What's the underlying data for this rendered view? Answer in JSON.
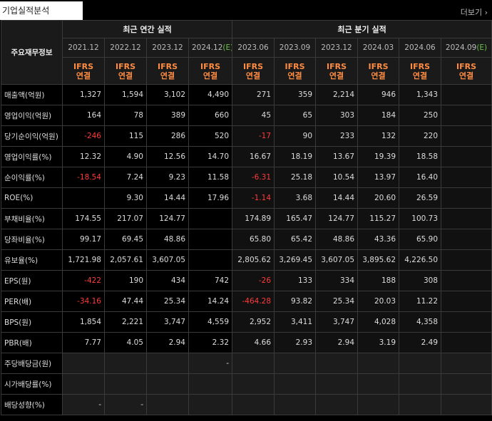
{
  "section_title": "기업실적분석",
  "more_label": "더보기",
  "more_arrow": "›",
  "corner_label": "주요재무정보",
  "groups": {
    "annual": "최근 연간 실적",
    "quarterly": "최근 분기 실적"
  },
  "estimate_suffix": "(E)",
  "annual_periods": [
    "2021.12",
    "2022.12",
    "2023.12",
    "2024.12"
  ],
  "quarter_periods": [
    "2023.06",
    "2023.09",
    "2023.12",
    "2024.03",
    "2024.06",
    "2024.09"
  ],
  "ifrs_label": "IFRS",
  "consol_label": "연결",
  "rows": [
    {
      "label": "매출액(억원)",
      "values": [
        "1,327",
        "1,594",
        "3,102",
        "4,490",
        "271",
        "359",
        "2,214",
        "946",
        "1,343",
        ""
      ]
    },
    {
      "label": "영업이익(억원)",
      "values": [
        "164",
        "78",
        "389",
        "660",
        "45",
        "65",
        "303",
        "184",
        "250",
        ""
      ]
    },
    {
      "label": "당기순이익(억원)",
      "values": [
        "-246",
        "115",
        "286",
        "520",
        "-17",
        "90",
        "233",
        "132",
        "220",
        ""
      ]
    },
    {
      "label": "영업이익률(%)",
      "values": [
        "12.32",
        "4.90",
        "12.56",
        "14.70",
        "16.67",
        "18.19",
        "13.67",
        "19.39",
        "18.58",
        ""
      ]
    },
    {
      "label": "순이익률(%)",
      "values": [
        "-18.54",
        "7.24",
        "9.23",
        "11.58",
        "-6.31",
        "25.18",
        "10.54",
        "13.97",
        "16.40",
        ""
      ]
    },
    {
      "label": "ROE(%)",
      "values": [
        "",
        "9.30",
        "14.44",
        "17.96",
        "-1.14",
        "3.68",
        "14.44",
        "20.60",
        "26.59",
        ""
      ]
    },
    {
      "label": "부채비율(%)",
      "values": [
        "174.55",
        "217.07",
        "124.77",
        "",
        "174.89",
        "165.47",
        "124.77",
        "115.27",
        "100.73",
        ""
      ]
    },
    {
      "label": "당좌비율(%)",
      "values": [
        "99.17",
        "69.45",
        "48.86",
        "",
        "65.80",
        "65.42",
        "48.86",
        "43.36",
        "65.90",
        ""
      ]
    },
    {
      "label": "유보율(%)",
      "values": [
        "1,721.98",
        "2,057.61",
        "3,607.05",
        "",
        "2,805.62",
        "3,269.45",
        "3,607.05",
        "3,895.62",
        "4,226.50",
        ""
      ]
    },
    {
      "label": "EPS(원)",
      "values": [
        "-422",
        "190",
        "434",
        "742",
        "-26",
        "133",
        "334",
        "188",
        "308",
        ""
      ]
    },
    {
      "label": "PER(배)",
      "values": [
        "-34.16",
        "47.44",
        "25.34",
        "14.24",
        "-464.28",
        "93.82",
        "25.34",
        "20.03",
        "11.22",
        ""
      ]
    },
    {
      "label": "BPS(원)",
      "values": [
        "1,854",
        "2,221",
        "3,747",
        "4,559",
        "2,952",
        "3,411",
        "3,747",
        "4,028",
        "4,358",
        ""
      ]
    },
    {
      "label": "PBR(배)",
      "values": [
        "7.77",
        "4.05",
        "2.94",
        "2.32",
        "4.66",
        "2.93",
        "2.94",
        "3.19",
        "2.49",
        ""
      ]
    },
    {
      "label": "주당배당금(원)",
      "values": [
        "",
        "",
        "",
        "-",
        "",
        "",
        "",
        "",
        "",
        ""
      ]
    },
    {
      "label": "시가배당률(%)",
      "values": [
        "",
        "",
        "",
        "",
        "",
        "",
        "",
        "",
        "",
        ""
      ]
    },
    {
      "label": "배당성향(%)",
      "values": [
        "-",
        "-",
        "",
        "",
        "",
        "",
        "",
        "",
        "",
        ""
      ]
    }
  ]
}
